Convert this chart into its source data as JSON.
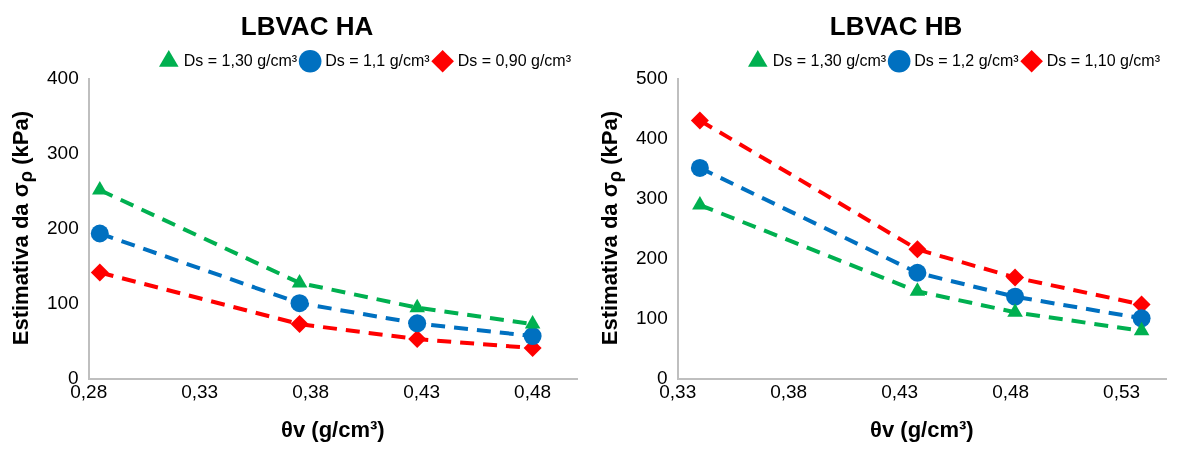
{
  "chart_data": [
    {
      "type": "line",
      "title": "LBVAC HA",
      "xlabel": "θv (g/cm³)",
      "ylabel": "Estimativa da σ$_{ρ}$ (kPa)",
      "xlim": [
        0.28,
        0.5
      ],
      "xticks": [
        {
          "value": 0.28,
          "label": "0,28"
        },
        {
          "value": 0.33,
          "label": "0,33"
        },
        {
          "value": 0.38,
          "label": "0,38"
        },
        {
          "value": 0.43,
          "label": "0,43"
        },
        {
          "value": 0.48,
          "label": "0,48"
        }
      ],
      "ylim": [
        0,
        400
      ],
      "yticks": [
        0,
        100,
        200,
        300,
        400
      ],
      "grid": false,
      "legend": "top right",
      "line_style": "dashed",
      "x": [
        0.285,
        0.375,
        0.428,
        0.48
      ],
      "series": [
        {
          "name": "Ds = 1,30 g/cm³",
          "color": "#00b050",
          "marker": "triangle",
          "values": [
            252,
            128,
            95,
            73
          ]
        },
        {
          "name": "Ds = 1,1 g/cm³",
          "color": "#0070c0",
          "marker": "circle",
          "values": [
            194,
            101,
            74,
            57
          ]
        },
        {
          "name": "Ds = 0,90 g/cm³",
          "color": "#ff0000",
          "marker": "diamond",
          "values": [
            142,
            73,
            53,
            41
          ]
        }
      ]
    },
    {
      "type": "line",
      "title": "LBVAC HB",
      "xlabel": "θv (g/cm³)",
      "ylabel": "Estimativa da σ$_{ρ}$ (kPa)",
      "xlim": [
        0.33,
        0.55
      ],
      "xticks": [
        {
          "value": 0.33,
          "label": "0,33"
        },
        {
          "value": 0.38,
          "label": "0,38"
        },
        {
          "value": 0.43,
          "label": "0,43"
        },
        {
          "value": 0.48,
          "label": "0,48"
        },
        {
          "value": 0.53,
          "label": "0,53"
        }
      ],
      "ylim": [
        0,
        500
      ],
      "yticks": [
        0,
        100,
        200,
        300,
        400,
        500
      ],
      "grid": false,
      "legend": "top right",
      "line_style": "dashed",
      "x": [
        0.34,
        0.438,
        0.482,
        0.539
      ],
      "series": [
        {
          "name": "Ds = 1,30 g/cm³",
          "color": "#00b050",
          "marker": "triangle",
          "values": [
            290,
            146,
            111,
            80
          ]
        },
        {
          "name": "Ds = 1,2 g/cm³",
          "color": "#0070c0",
          "marker": "circle",
          "values": [
            352,
            177,
            137,
            101
          ]
        },
        {
          "name": "Ds = 1,10 g/cm³",
          "color": "#ff0000",
          "marker": "diamond",
          "values": [
            431,
            216,
            169,
            124
          ]
        }
      ]
    }
  ]
}
